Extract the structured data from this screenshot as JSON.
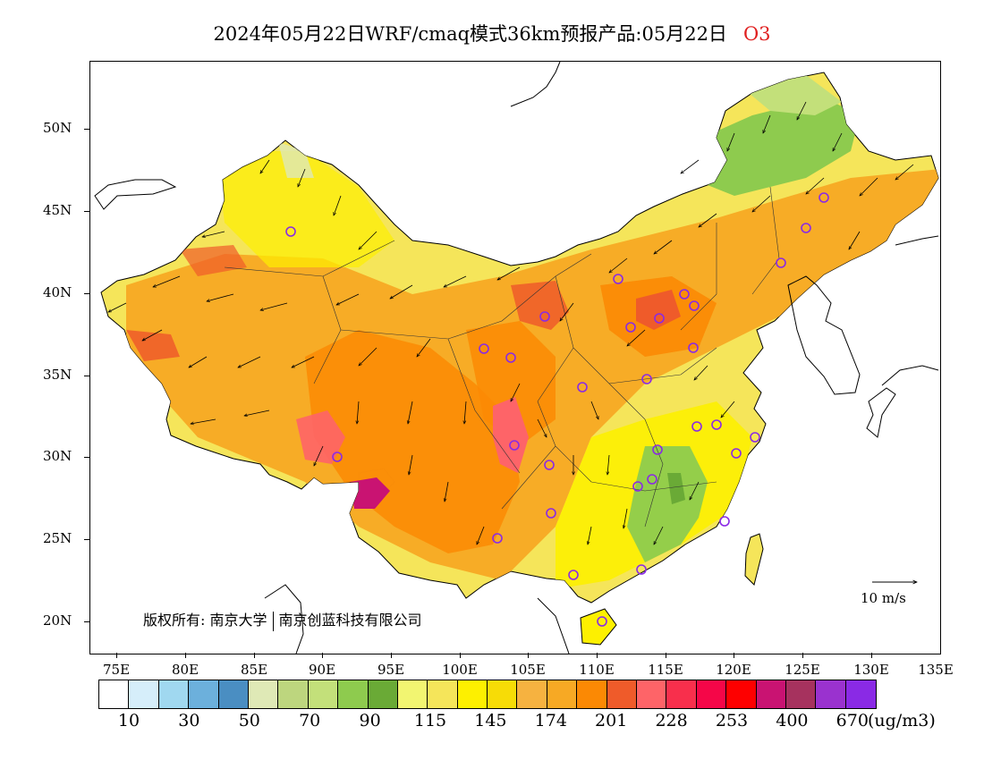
{
  "title": {
    "main": "2024年05月22日WRF/cmaq模式36km预报产品:05月22日",
    "species": "O3"
  },
  "map": {
    "lat_labels": [
      "50N",
      "45N",
      "40N",
      "35N",
      "30N",
      "25N",
      "20N"
    ],
    "lon_labels": [
      "75E",
      "80E",
      "85E",
      "90E",
      "95E",
      "100E",
      "105E",
      "110E",
      "115E",
      "120E",
      "125E",
      "130E",
      "135E"
    ],
    "copyright": {
      "prefix": "版权所有:",
      "org1": "南京大学",
      "org2": "南京创蓝科技有限公司"
    },
    "wind_reference": "10 m/s"
  },
  "colorbar": {
    "colors": [
      "#ffffff",
      "#d6eefa",
      "#a0d8f0",
      "#6cb0dc",
      "#4a8ec2",
      "#dfe9b6",
      "#bdd67e",
      "#c3e07a",
      "#8ecb4e",
      "#6aaa36",
      "#f2f571",
      "#f5e55a",
      "#fdf000",
      "#f7dc06",
      "#f6b240",
      "#f7a924",
      "#fb8904",
      "#ef5b2a",
      "#fe6468",
      "#f82f4c",
      "#f50648",
      "#fe0000",
      "#c91372",
      "#a6325e",
      "#9a32cf",
      "#8a2ae5"
    ],
    "labels": [
      "10",
      "30",
      "50",
      "70",
      "90",
      "115",
      "145",
      "174",
      "201",
      "228",
      "253",
      "400",
      "670"
    ],
    "unit": "(ug/m3)"
  }
}
